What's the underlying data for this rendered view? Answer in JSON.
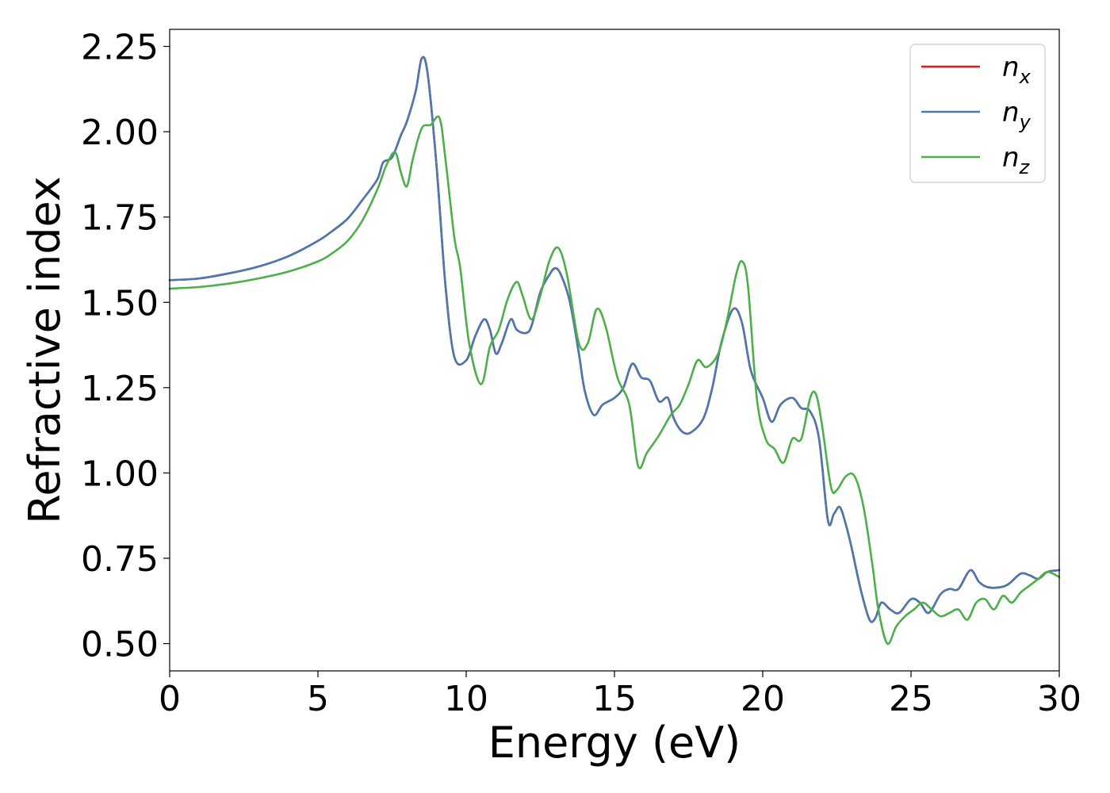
{
  "chart_data": {
    "type": "line",
    "title": "",
    "xlabel": "Energy (eV)",
    "ylabel": "Refractive index",
    "xlim": [
      0,
      30
    ],
    "ylim": [
      0.42,
      2.3
    ],
    "xticks": [
      0,
      5,
      10,
      15,
      20,
      25,
      30
    ],
    "xtick_labels": [
      "0",
      "5",
      "10",
      "15",
      "20",
      "25",
      "30"
    ],
    "yticks": [
      0.5,
      0.75,
      1.0,
      1.25,
      1.5,
      1.75,
      2.0,
      2.25
    ],
    "ytick_labels": [
      "0.50",
      "0.75",
      "1.00",
      "1.25",
      "1.50",
      "1.75",
      "2.00",
      "2.25"
    ],
    "grid": false,
    "legend_position": "top-right",
    "series": [
      {
        "name": "n_x",
        "legend_base": "n",
        "legend_sub": "x",
        "color": "#e41a1c",
        "x": [
          0,
          1,
          2,
          3,
          4,
          5,
          5.5,
          6,
          6.5,
          7,
          7.2,
          7.5,
          7.8,
          8,
          8.3,
          8.5,
          8.7,
          9,
          9.3,
          9.6,
          10,
          10.3,
          10.6,
          10.8,
          11,
          11.2,
          11.5,
          11.7,
          12,
          12.2,
          12.5,
          12.8,
          13,
          13.2,
          13.5,
          13.8,
          14,
          14.3,
          14.6,
          15,
          15.3,
          15.6,
          15.9,
          16.2,
          16.5,
          16.8,
          17,
          17.3,
          17.6,
          18,
          18.3,
          18.6,
          19,
          19.3,
          19.6,
          20,
          20.3,
          20.6,
          21,
          21.3,
          21.6,
          21.9,
          22.2,
          22.4,
          22.6,
          22.8,
          23,
          23.3,
          23.6,
          23.8,
          24,
          24.3,
          24.6,
          25,
          25.3,
          25.6,
          26,
          26.3,
          26.6,
          27,
          27.3,
          27.6,
          28,
          28.3,
          28.7,
          29,
          29.3,
          29.6,
          30
        ],
        "y": [
          1.565,
          1.57,
          1.585,
          1.605,
          1.635,
          1.68,
          1.71,
          1.745,
          1.8,
          1.86,
          1.91,
          1.925,
          1.99,
          2.03,
          2.12,
          2.215,
          2.17,
          1.9,
          1.55,
          1.34,
          1.33,
          1.4,
          1.45,
          1.42,
          1.35,
          1.38,
          1.45,
          1.42,
          1.41,
          1.43,
          1.53,
          1.58,
          1.6,
          1.58,
          1.5,
          1.35,
          1.24,
          1.17,
          1.2,
          1.22,
          1.25,
          1.32,
          1.28,
          1.27,
          1.21,
          1.22,
          1.16,
          1.12,
          1.12,
          1.16,
          1.25,
          1.38,
          1.48,
          1.44,
          1.3,
          1.22,
          1.15,
          1.2,
          1.22,
          1.19,
          1.18,
          1.1,
          0.86,
          0.88,
          0.9,
          0.85,
          0.78,
          0.66,
          0.57,
          0.575,
          0.62,
          0.6,
          0.59,
          0.63,
          0.62,
          0.59,
          0.645,
          0.66,
          0.66,
          0.715,
          0.68,
          0.665,
          0.665,
          0.675,
          0.705,
          0.7,
          0.69,
          0.71,
          0.715
        ]
      },
      {
        "name": "n_y",
        "legend_base": "n",
        "legend_sub": "y",
        "color": "#4a78b0",
        "x": [
          0,
          1,
          2,
          3,
          4,
          5,
          5.5,
          6,
          6.5,
          7,
          7.2,
          7.5,
          7.8,
          8,
          8.3,
          8.5,
          8.7,
          9,
          9.3,
          9.6,
          10,
          10.3,
          10.6,
          10.8,
          11,
          11.2,
          11.5,
          11.7,
          12,
          12.2,
          12.5,
          12.8,
          13,
          13.2,
          13.5,
          13.8,
          14,
          14.3,
          14.6,
          15,
          15.3,
          15.6,
          15.9,
          16.2,
          16.5,
          16.8,
          17,
          17.3,
          17.6,
          18,
          18.3,
          18.6,
          19,
          19.3,
          19.6,
          20,
          20.3,
          20.6,
          21,
          21.3,
          21.6,
          21.9,
          22.2,
          22.4,
          22.6,
          22.8,
          23,
          23.3,
          23.6,
          23.8,
          24,
          24.3,
          24.6,
          25,
          25.3,
          25.6,
          26,
          26.3,
          26.6,
          27,
          27.3,
          27.6,
          28,
          28.3,
          28.7,
          29,
          29.3,
          29.6,
          30
        ],
        "y": [
          1.565,
          1.57,
          1.585,
          1.605,
          1.635,
          1.68,
          1.71,
          1.745,
          1.8,
          1.86,
          1.91,
          1.925,
          1.99,
          2.03,
          2.12,
          2.215,
          2.17,
          1.9,
          1.55,
          1.34,
          1.33,
          1.4,
          1.45,
          1.42,
          1.35,
          1.38,
          1.45,
          1.42,
          1.41,
          1.43,
          1.53,
          1.58,
          1.6,
          1.58,
          1.5,
          1.35,
          1.24,
          1.17,
          1.2,
          1.22,
          1.25,
          1.32,
          1.28,
          1.27,
          1.21,
          1.22,
          1.16,
          1.12,
          1.12,
          1.16,
          1.25,
          1.38,
          1.48,
          1.44,
          1.3,
          1.22,
          1.15,
          1.2,
          1.22,
          1.19,
          1.18,
          1.1,
          0.86,
          0.88,
          0.9,
          0.85,
          0.78,
          0.66,
          0.57,
          0.575,
          0.62,
          0.6,
          0.59,
          0.63,
          0.62,
          0.59,
          0.645,
          0.66,
          0.66,
          0.715,
          0.68,
          0.665,
          0.665,
          0.675,
          0.705,
          0.7,
          0.69,
          0.71,
          0.715
        ]
      },
      {
        "name": "n_z",
        "legend_base": "n",
        "legend_sub": "z",
        "color": "#4daf4a",
        "x": [
          0,
          1,
          2,
          3,
          4,
          5,
          5.5,
          6,
          6.5,
          7,
          7.3,
          7.6,
          7.8,
          8,
          8.2,
          8.5,
          8.8,
          9.1,
          9.3,
          9.6,
          9.8,
          10.1,
          10.5,
          10.8,
          11.1,
          11.4,
          11.7,
          11.9,
          12.2,
          12.5,
          12.8,
          13.1,
          13.4,
          13.8,
          14.1,
          14.4,
          14.7,
          15.1,
          15.5,
          15.8,
          16.1,
          16.5,
          16.9,
          17.2,
          17.5,
          17.8,
          18.1,
          18.5,
          18.8,
          19.1,
          19.3,
          19.5,
          19.8,
          20.1,
          20.4,
          20.7,
          21,
          21.3,
          21.6,
          21.8,
          22,
          22.3,
          22.5,
          22.8,
          23.1,
          23.4,
          23.7,
          23.9,
          24.2,
          24.5,
          24.8,
          25.1,
          25.4,
          25.7,
          26,
          26.3,
          26.6,
          26.9,
          27.2,
          27.5,
          27.8,
          28.1,
          28.4,
          28.7,
          29,
          29.3,
          29.6,
          30
        ],
        "y": [
          1.54,
          1.545,
          1.555,
          1.57,
          1.59,
          1.62,
          1.645,
          1.68,
          1.74,
          1.83,
          1.9,
          1.94,
          1.88,
          1.84,
          1.92,
          2.01,
          2.02,
          2.04,
          1.92,
          1.69,
          1.6,
          1.38,
          1.26,
          1.37,
          1.42,
          1.51,
          1.56,
          1.52,
          1.45,
          1.52,
          1.62,
          1.66,
          1.58,
          1.38,
          1.38,
          1.48,
          1.43,
          1.28,
          1.2,
          1.02,
          1.06,
          1.11,
          1.17,
          1.2,
          1.26,
          1.33,
          1.31,
          1.35,
          1.45,
          1.58,
          1.62,
          1.55,
          1.22,
          1.1,
          1.07,
          1.03,
          1.1,
          1.1,
          1.22,
          1.23,
          1.14,
          0.96,
          0.95,
          0.99,
          0.99,
          0.9,
          0.73,
          0.6,
          0.5,
          0.55,
          0.58,
          0.6,
          0.62,
          0.6,
          0.58,
          0.59,
          0.6,
          0.57,
          0.62,
          0.63,
          0.6,
          0.64,
          0.62,
          0.65,
          0.67,
          0.69,
          0.71,
          0.695
        ]
      }
    ]
  }
}
